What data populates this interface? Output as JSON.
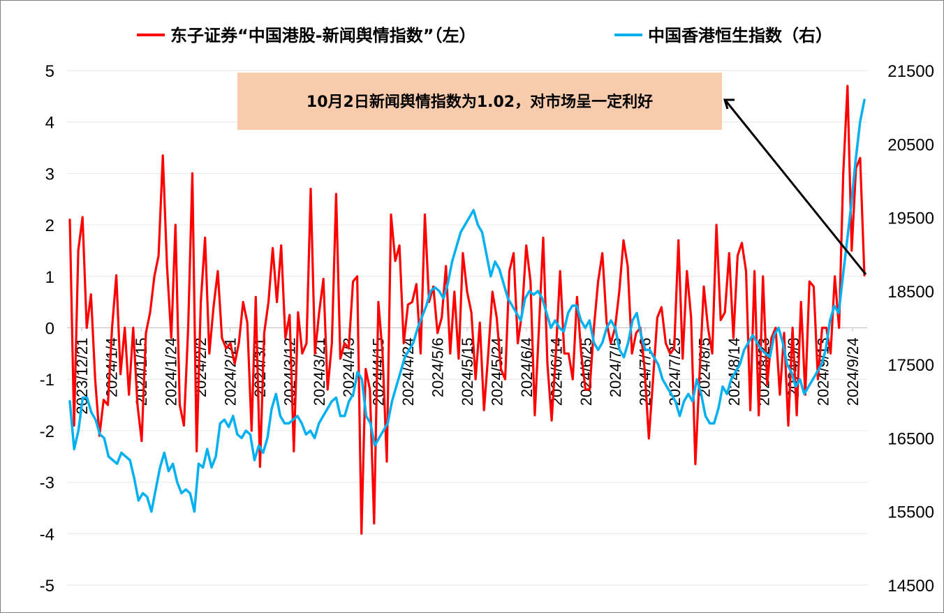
{
  "chart_data": {
    "type": "line",
    "series": [
      {
        "name": "东子证券“中国港股-新闻舆情指数”（左）",
        "axis": "left",
        "color": "#ff0000",
        "values": [
          2.1,
          -1.9,
          1.5,
          2.15,
          0.0,
          0.65,
          -1.0,
          -2.1,
          -1.4,
          -1.5,
          0.0,
          1.02,
          -0.9,
          0.0,
          -1.3,
          0.0,
          -1.5,
          -2.2,
          -0.1,
          0.3,
          1.0,
          1.4,
          3.35,
          1.2,
          -0.2,
          2.0,
          -1.5,
          -1.9,
          0.0,
          3.0,
          -2.4,
          0.5,
          1.75,
          -0.5,
          0.4,
          1.1,
          -0.2,
          -0.4,
          -0.3,
          -0.7,
          -0.3,
          0.5,
          0.1,
          -2.0,
          0.6,
          -2.7,
          -0.1,
          0.5,
          1.55,
          0.5,
          1.6,
          -0.2,
          0.25,
          -2.4,
          0.3,
          -0.5,
          -0.3,
          2.7,
          -0.5,
          0.3,
          0.95,
          -1.2,
          -0.3,
          2.6,
          -0.6,
          -0.3,
          -0.4,
          0.9,
          1.0,
          -4.0,
          -0.8,
          -1.2,
          -3.8,
          0.5,
          -0.5,
          -2.6,
          2.2,
          1.3,
          1.6,
          -0.3,
          0.45,
          0.5,
          0.85,
          -0.5,
          2.2,
          0.5,
          0.8,
          -0.1,
          0.2,
          1.2,
          -0.5,
          0.7,
          -0.6,
          1.45,
          0.7,
          0.3,
          -1.0,
          0.1,
          -1.6,
          -0.5,
          0.7,
          0.2,
          -0.8,
          -1.0,
          1.1,
          1.45,
          -0.3,
          0.3,
          1.6,
          0.9,
          -1.7,
          0.0,
          1.75,
          -0.7,
          -1.8,
          -0.5,
          1.1,
          -0.5,
          -0.5,
          -1.0,
          0.6,
          -0.5,
          -1.2,
          -1.2,
          0.0,
          0.9,
          1.45,
          0.1,
          -0.3,
          0.0,
          0.7,
          1.7,
          1.2,
          -0.5,
          -0.1,
          0.0,
          -0.8,
          -2.15,
          -1.0,
          0.2,
          0.4,
          -0.3,
          -0.5,
          -0.4,
          1.7,
          -0.6,
          1.1,
          0.2,
          -2.65,
          -0.9,
          0.8,
          0.0,
          -0.5,
          2.0,
          0.15,
          0.3,
          1.45,
          -0.2,
          1.4,
          1.65,
          1.1,
          -1.6,
          1.1,
          -1.7,
          1.0,
          -1.1,
          -0.2,
          0.0,
          -1.3,
          -0.1,
          -1.9,
          0.0,
          -1.7,
          0.5,
          -1.3,
          0.9,
          0.8,
          -1.0,
          0.0,
          0.0,
          -0.5,
          1.0,
          0.0,
          3.0,
          4.7,
          1.5,
          3.1,
          3.3,
          1.02
        ]
      },
      {
        "name": "中国香港恒生指数（右）",
        "axis": "right",
        "color": "#00b0f0",
        "values": [
          17000,
          16350,
          16600,
          17050,
          17050,
          16850,
          16750,
          16550,
          16500,
          16250,
          16200,
          16150,
          16300,
          16250,
          16200,
          15950,
          15650,
          15750,
          15700,
          15500,
          15800,
          16100,
          16300,
          16050,
          16150,
          15900,
          15750,
          15800,
          15750,
          15500,
          16150,
          16100,
          16350,
          16100,
          16250,
          16700,
          16750,
          16650,
          16800,
          16550,
          16500,
          16600,
          16550,
          16200,
          16400,
          16300,
          16500,
          16900,
          17100,
          16800,
          16700,
          16700,
          16750,
          16800,
          16700,
          16550,
          16600,
          16500,
          16700,
          16800,
          16900,
          17000,
          17050,
          16800,
          16800,
          17000,
          17100,
          17400,
          17300,
          16800,
          16700,
          16400,
          16500,
          16600,
          16700,
          17000,
          17200,
          17400,
          17600,
          17700,
          17800,
          18000,
          18150,
          18300,
          18500,
          18550,
          18500,
          18400,
          18600,
          18900,
          19100,
          19300,
          19400,
          19500,
          19600,
          19400,
          19300,
          19000,
          18700,
          18900,
          18800,
          18600,
          18400,
          18300,
          18200,
          18100,
          18400,
          18500,
          18450,
          18500,
          18400,
          18200,
          18000,
          18100,
          18000,
          17950,
          18200,
          18300,
          18300,
          18100,
          18000,
          18100,
          17800,
          17700,
          17800,
          18000,
          18100,
          18000,
          17700,
          17600,
          17800,
          18100,
          18200,
          17900,
          17700,
          17700,
          17600,
          17500,
          17300,
          17200,
          17100,
          17000,
          16800,
          17000,
          17100,
          17000,
          17300,
          17100,
          16800,
          16700,
          16700,
          16900,
          17200,
          17100,
          17300,
          17400,
          17500,
          17700,
          17800,
          17900,
          17800,
          17700,
          17650,
          17600,
          17900,
          18000,
          17800,
          17500,
          17400,
          17200,
          17300,
          17100,
          17200,
          17300,
          17400,
          17500,
          17700,
          18100,
          18300,
          18200,
          18700,
          19200,
          19700,
          20300,
          20800,
          21100
        ]
      }
    ],
    "left_axis": {
      "ticks": [
        "-5",
        "-4",
        "-3",
        "-2",
        "-1",
        "0",
        "1",
        "2",
        "3",
        "4",
        "5"
      ],
      "ylim": [
        -5,
        5
      ]
    },
    "right_axis": {
      "ticks": [
        "14500",
        "15500",
        "16500",
        "17500",
        "18500",
        "19500",
        "20500",
        "21500"
      ],
      "ylim": [
        14500,
        21500
      ]
    },
    "x_tick_labels": [
      "2023/12/21",
      "2024/1/4",
      "2024/1/15",
      "2024/1/24",
      "2024/2/2",
      "2024/2/21",
      "2024/3/1",
      "2024/3/12",
      "2024/3/21",
      "2024/4/3",
      "2024/4/15",
      "2024/4/24",
      "2024/5/6",
      "2024/5/15",
      "2024/5/24",
      "2024/6/4",
      "2024/6/14",
      "2024/6/25",
      "2024/7/5",
      "2024/7/16",
      "2024/7/25",
      "2024/8/5",
      "2024/8/14",
      "2024/8/23",
      "2024/9/3",
      "2024/9/13",
      "2024/9/24"
    ],
    "annotation": "10月2日新闻舆情指数为1.02，对市场呈一定利好",
    "grid": true,
    "legend_position": "top"
  }
}
